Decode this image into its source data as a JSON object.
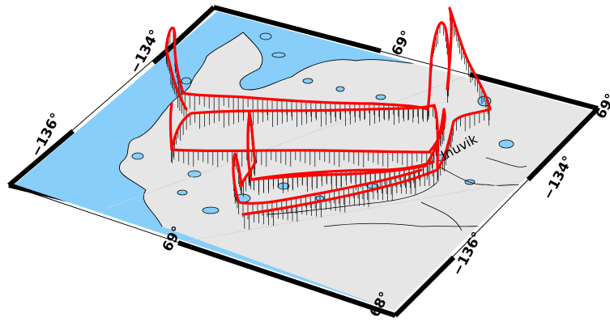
{
  "labels": {
    "lon_left_top": "−134°",
    "lon_left_bottom": "−136°",
    "lat_left": "69°",
    "lat_bottom": "68°",
    "lat_top": "69°",
    "lat_right": "69°",
    "lon_right_top": "−134°",
    "lon_right_bottom": "−136°",
    "place": "Inuvik"
  },
  "colors": {
    "water": "#87CEFA",
    "land": "#E6E6E6",
    "track": "#FF0000",
    "frame": "#000000"
  }
}
